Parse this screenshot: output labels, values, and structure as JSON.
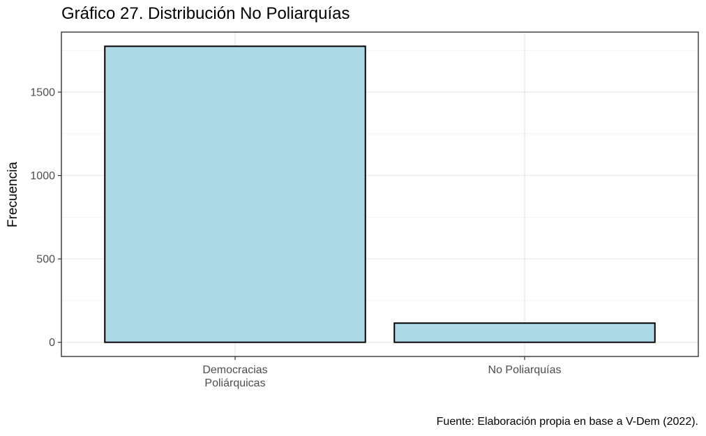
{
  "chart_data": {
    "type": "bar",
    "title": "Gráfico 27. Distribución No Poliarquías",
    "xlabel": "",
    "ylabel": "Frecuencia",
    "categories": [
      [
        "Democracias",
        "Poliárquicas"
      ],
      [
        "No Poliarquías"
      ]
    ],
    "values": [
      1775,
      115
    ],
    "ylim": [
      -85,
      1860
    ],
    "yticks": [
      0,
      500,
      1000,
      1500
    ],
    "caption": "Fuente: Elaboración propia en base a V-Dem (2022).",
    "bar_fill": "#add8e6",
    "bar_stroke": "#000000",
    "grid": true,
    "legend": "none"
  }
}
